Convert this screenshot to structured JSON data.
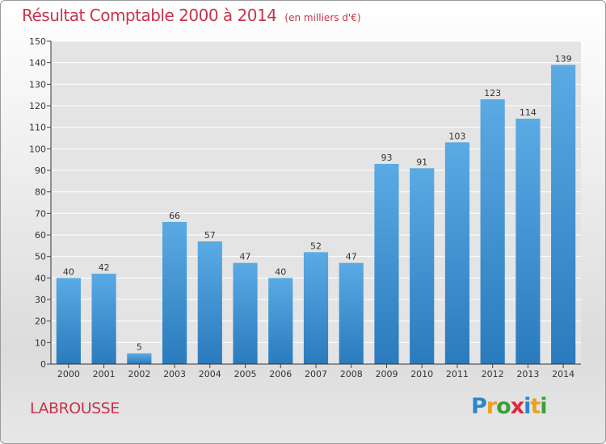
{
  "chart_data": {
    "type": "bar",
    "title": "Résultat Comptable 2000 à 2014",
    "subtitle": "(en milliers d'€)",
    "categories": [
      "2000",
      "2001",
      "2002",
      "2003",
      "2004",
      "2005",
      "2006",
      "2007",
      "2008",
      "2009",
      "2010",
      "2011",
      "2012",
      "2013",
      "2014"
    ],
    "values": [
      40,
      42,
      5,
      66,
      57,
      47,
      40,
      52,
      47,
      93,
      91,
      103,
      123,
      114,
      139
    ],
    "ylim": [
      0,
      150
    ],
    "yticks": [
      0,
      10,
      20,
      30,
      40,
      50,
      60,
      70,
      80,
      90,
      100,
      110,
      120,
      130,
      140,
      150
    ],
    "grid": true,
    "bar_color_top": "#5aaae4",
    "bar_color_bottom": "#2a7bbd"
  },
  "place_name": "LABROUSSE",
  "logo": {
    "letters": [
      "P",
      "r",
      "o",
      "x",
      "i",
      "t",
      "i"
    ],
    "colors": [
      "#2b86c8",
      "#f0a020",
      "#3aa13a",
      "#e0283c",
      "#2b86c8",
      "#f0a020",
      "#3aa13a"
    ]
  }
}
